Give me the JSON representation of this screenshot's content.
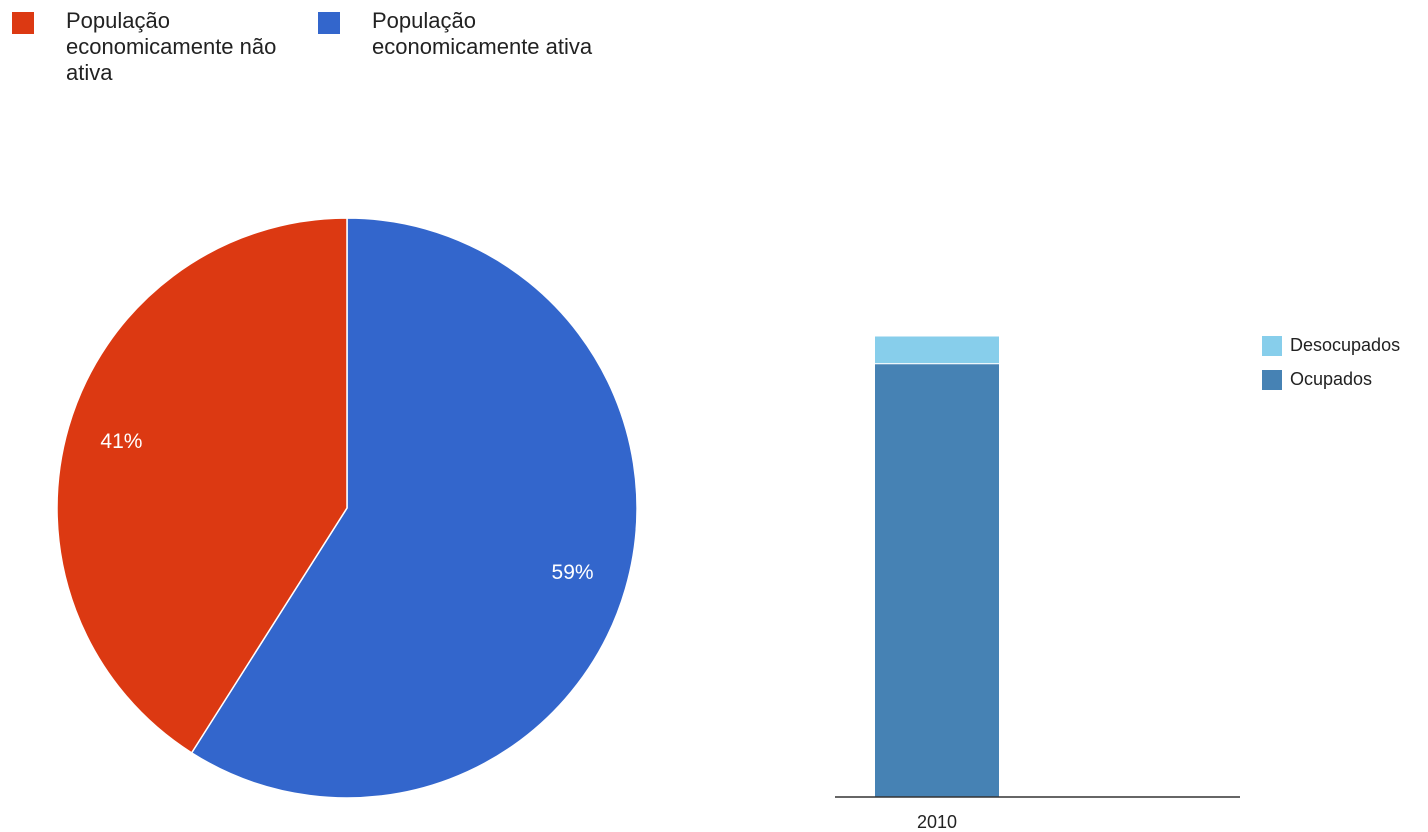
{
  "chart_data": [
    {
      "type": "pie",
      "categories": [
        "População economicamente não ativa",
        "População economicamente ativa"
      ],
      "values": [
        41,
        59
      ],
      "value_labels": [
        "41%",
        "59%"
      ],
      "colors": [
        "#dc3912",
        "#3366cc"
      ],
      "legend": "top"
    },
    {
      "type": "bar",
      "stacked": true,
      "categories": [
        "2010"
      ],
      "series": [
        {
          "name": "Ocupados",
          "color": "#4682b4",
          "values": [
            94
          ]
        },
        {
          "name": "Desocupados",
          "color": "#87ceeb",
          "values": [
            6
          ]
        }
      ],
      "ylim": [
        0,
        100
      ],
      "legend": "right"
    }
  ]
}
